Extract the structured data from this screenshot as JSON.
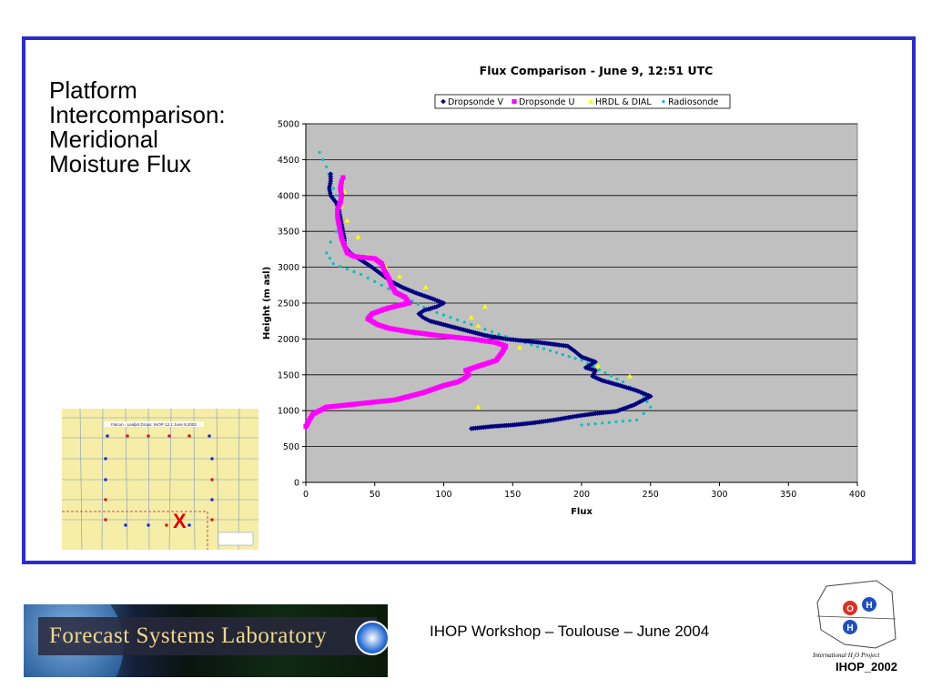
{
  "slide": {
    "title": "Platform\nIntercomparison:\nMeridional\nMoisture Flux",
    "footer": "IHOP Workshop – Toulouse – June 2004",
    "logo_text": "Forecast Systems Laboratory",
    "ihop_caption": "International H₂O Project",
    "ihop_name": "IHOP_2002",
    "ihop_bubbles": [
      "O",
      "H",
      "H"
    ],
    "map_marker": "X",
    "map_caption": "Falcon - Leafjet Drops, IHOP 12.1 June 9,2002",
    "frame_color": "#2b2bd0"
  },
  "chart_data": {
    "type": "scatter",
    "title": "Flux Comparison - June 9, 12:51 UTC",
    "xlabel": "Flux",
    "ylabel": "Height (m asl)",
    "xlim": [
      0,
      400
    ],
    "ylim": [
      0,
      5000
    ],
    "xticks": [
      0,
      50,
      100,
      150,
      200,
      250,
      300,
      350,
      400
    ],
    "yticks": [
      0,
      500,
      1000,
      1500,
      2000,
      2500,
      3000,
      3500,
      4000,
      4500,
      5000
    ],
    "grid": "horizontal",
    "legend_position": "top",
    "plot_background": "#c0c0c0",
    "series": [
      {
        "name": "Dropsonde V",
        "color": "#000080",
        "marker": "diamond",
        "points": [
          [
            120,
            750
          ],
          [
            135,
            780
          ],
          [
            150,
            800
          ],
          [
            165,
            830
          ],
          [
            180,
            870
          ],
          [
            195,
            920
          ],
          [
            210,
            960
          ],
          [
            225,
            990
          ],
          [
            238,
            1080
          ],
          [
            245,
            1150
          ],
          [
            250,
            1200
          ],
          [
            240,
            1280
          ],
          [
            228,
            1350
          ],
          [
            215,
            1420
          ],
          [
            208,
            1480
          ],
          [
            210,
            1560
          ],
          [
            203,
            1600
          ],
          [
            210,
            1680
          ],
          [
            200,
            1750
          ],
          [
            195,
            1830
          ],
          [
            190,
            1900
          ],
          [
            170,
            1950
          ],
          [
            145,
            2000
          ],
          [
            130,
            2050
          ],
          [
            120,
            2100
          ],
          [
            110,
            2150
          ],
          [
            100,
            2200
          ],
          [
            90,
            2250
          ],
          [
            85,
            2300
          ],
          [
            82,
            2350
          ],
          [
            86,
            2400
          ],
          [
            95,
            2450
          ],
          [
            100,
            2500
          ],
          [
            92,
            2560
          ],
          [
            80,
            2640
          ],
          [
            70,
            2720
          ],
          [
            62,
            2800
          ],
          [
            55,
            2900
          ],
          [
            48,
            3000
          ],
          [
            40,
            3100
          ],
          [
            32,
            3200
          ],
          [
            28,
            3300
          ],
          [
            28,
            3400
          ],
          [
            27,
            3500
          ],
          [
            26,
            3600
          ],
          [
            25,
            3700
          ],
          [
            24,
            3800
          ],
          [
            22,
            3900
          ],
          [
            18,
            4000
          ],
          [
            17,
            4100
          ],
          [
            18,
            4200
          ],
          [
            18,
            4300
          ]
        ]
      },
      {
        "name": "Dropsonde U",
        "color": "#ff00ff",
        "marker": "square",
        "points": [
          [
            0,
            780
          ],
          [
            5,
            950
          ],
          [
            15,
            1050
          ],
          [
            40,
            1100
          ],
          [
            65,
            1150
          ],
          [
            85,
            1250
          ],
          [
            100,
            1350
          ],
          [
            110,
            1400
          ],
          [
            115,
            1450
          ],
          [
            118,
            1500
          ],
          [
            116,
            1560
          ],
          [
            122,
            1600
          ],
          [
            130,
            1650
          ],
          [
            138,
            1700
          ],
          [
            142,
            1800
          ],
          [
            145,
            1900
          ],
          [
            138,
            1950
          ],
          [
            120,
            2000
          ],
          [
            95,
            2050
          ],
          [
            75,
            2100
          ],
          [
            60,
            2150
          ],
          [
            52,
            2200
          ],
          [
            45,
            2280
          ],
          [
            48,
            2350
          ],
          [
            58,
            2420
          ],
          [
            70,
            2480
          ],
          [
            75,
            2500
          ],
          [
            72,
            2580
          ],
          [
            65,
            2650
          ],
          [
            62,
            2750
          ],
          [
            60,
            2850
          ],
          [
            57,
            2950
          ],
          [
            55,
            3050
          ],
          [
            50,
            3120
          ],
          [
            35,
            3150
          ],
          [
            30,
            3200
          ],
          [
            28,
            3300
          ],
          [
            26,
            3400
          ],
          [
            25,
            3500
          ],
          [
            24,
            3600
          ],
          [
            23,
            3700
          ],
          [
            23,
            3800
          ],
          [
            25,
            3900
          ],
          [
            26,
            4000
          ],
          [
            25,
            4100
          ],
          [
            26,
            4200
          ],
          [
            27,
            4250
          ]
        ]
      },
      {
        "name": "HRDL & DIAL",
        "color": "#ffff00",
        "marker": "triangle",
        "points": [
          [
            125,
            1050
          ],
          [
            235,
            1480
          ],
          [
            212,
            1620
          ],
          [
            155,
            1880
          ],
          [
            120,
            2000
          ],
          [
            125,
            2180
          ],
          [
            120,
            2300
          ],
          [
            130,
            2450
          ],
          [
            87,
            2720
          ],
          [
            68,
            2870
          ],
          [
            58,
            3000
          ],
          [
            45,
            3150
          ],
          [
            38,
            3420
          ],
          [
            30,
            3650
          ],
          [
            26,
            3850
          ],
          [
            28,
            4050
          ]
        ]
      },
      {
        "name": "Radiosonde",
        "color": "#00c0c0",
        "marker": "dot",
        "points": [
          [
            200,
            800
          ],
          [
            240,
            870
          ],
          [
            250,
            1050
          ],
          [
            245,
            1200
          ],
          [
            230,
            1400
          ],
          [
            200,
            1700
          ],
          [
            150,
            2000
          ],
          [
            120,
            2200
          ],
          [
            90,
            2400
          ],
          [
            60,
            2700
          ],
          [
            40,
            2900
          ],
          [
            20,
            3050
          ],
          [
            15,
            3200
          ],
          [
            18,
            3350
          ],
          [
            22,
            3500
          ],
          [
            25,
            3800
          ],
          [
            20,
            4100
          ],
          [
            15,
            4400
          ],
          [
            10,
            4600
          ]
        ]
      }
    ]
  }
}
